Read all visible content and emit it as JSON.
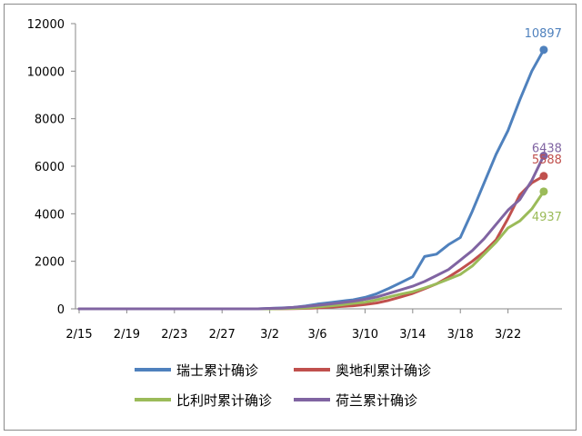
{
  "chart_data": {
    "type": "line",
    "x": [
      "2/15",
      "2/16",
      "2/17",
      "2/18",
      "2/19",
      "2/20",
      "2/21",
      "2/22",
      "2/23",
      "2/24",
      "2/25",
      "2/26",
      "2/27",
      "2/28",
      "2/29",
      "3/1",
      "3/2",
      "3/3",
      "3/4",
      "3/5",
      "3/6",
      "3/7",
      "3/8",
      "3/9",
      "3/10",
      "3/11",
      "3/12",
      "3/13",
      "3/14",
      "3/15",
      "3/16",
      "3/17",
      "3/18",
      "3/19",
      "3/20",
      "3/21",
      "3/22",
      "3/23",
      "3/24",
      "3/25"
    ],
    "x_ticks": [
      "2/15",
      "2/19",
      "2/23",
      "2/27",
      "3/2",
      "3/6",
      "3/10",
      "3/14",
      "3/18",
      "3/22"
    ],
    "y_ticks": [
      "0",
      "2000",
      "4000",
      "6000",
      "8000",
      "10000",
      "12000"
    ],
    "ylim": [
      0,
      12000
    ],
    "series": [
      {
        "name": "瑞士累计确诊",
        "color": "#4f81bd",
        "end_label": "10897",
        "values": [
          0,
          0,
          0,
          0,
          0,
          0,
          0,
          0,
          0,
          0,
          0,
          0,
          0,
          0,
          0,
          0,
          20,
          40,
          60,
          120,
          200,
          260,
          320,
          380,
          480,
          640,
          860,
          1100,
          1350,
          2200,
          2300,
          2700,
          3000,
          4100,
          5300,
          6500,
          7500,
          8800,
          10000,
          10897
        ]
      },
      {
        "name": "奥地利累计确诊",
        "color": "#c0504d",
        "end_label": "5588",
        "values": [
          0,
          0,
          0,
          0,
          0,
          0,
          0,
          0,
          0,
          0,
          0,
          0,
          0,
          0,
          0,
          0,
          0,
          5,
          10,
          20,
          40,
          70,
          100,
          130,
          180,
          250,
          360,
          500,
          650,
          850,
          1050,
          1330,
          1650,
          2000,
          2400,
          2900,
          3800,
          4800,
          5300,
          5588
        ]
      },
      {
        "name": "比利时累计确诊",
        "color": "#9bbb59",
        "end_label": "4937",
        "values": [
          0,
          0,
          0,
          0,
          0,
          0,
          0,
          0,
          0,
          0,
          0,
          0,
          0,
          0,
          0,
          0,
          0,
          10,
          20,
          40,
          80,
          120,
          170,
          230,
          280,
          380,
          500,
          620,
          720,
          880,
          1050,
          1250,
          1450,
          1800,
          2300,
          2800,
          3400,
          3700,
          4200,
          4937
        ]
      },
      {
        "name": "荷兰累计确诊",
        "color": "#8064a2",
        "end_label": "6438",
        "values": [
          0,
          0,
          0,
          0,
          0,
          0,
          0,
          0,
          0,
          0,
          0,
          0,
          0,
          0,
          0,
          0,
          20,
          30,
          60,
          100,
          150,
          200,
          260,
          320,
          400,
          500,
          650,
          800,
          950,
          1150,
          1400,
          1650,
          2050,
          2450,
          2950,
          3550,
          4150,
          4600,
          5400,
          6438
        ]
      }
    ]
  }
}
